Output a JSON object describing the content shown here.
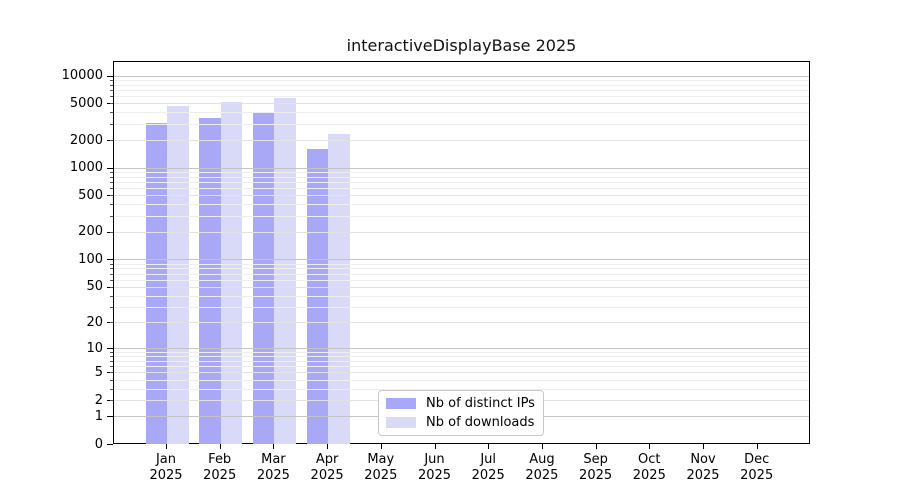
{
  "chart_data": {
    "type": "bar",
    "title": "interactiveDisplayBase 2025",
    "y_scale": "log1p",
    "ylim": [
      0,
      14500
    ],
    "grid": true,
    "legend_position": "lower-center-inside",
    "x_months": [
      "Jan",
      "Feb",
      "Mar",
      "Apr",
      "May",
      "Jun",
      "Jul",
      "Aug",
      "Sep",
      "Oct",
      "Nov",
      "Dec"
    ],
    "x_year": "2025",
    "y_tick_labels": [
      "0",
      "1",
      "2",
      "5",
      "10",
      "20",
      "50",
      "100",
      "200",
      "500",
      "1000",
      "2000",
      "5000",
      "10000"
    ],
    "series": [
      {
        "name": "Nb of distinct IPs",
        "color": "#a8a8f6",
        "values": [
          3100,
          3500,
          3900,
          1600,
          null,
          null,
          null,
          null,
          null,
          null,
          null,
          null
        ]
      },
      {
        "name": "Nb of downloads",
        "color": "#d9d9f8",
        "values": [
          4700,
          5200,
          5700,
          2300,
          null,
          null,
          null,
          null,
          null,
          null,
          null,
          null
        ]
      }
    ],
    "colors": {
      "grid_major": "#c4c4c4",
      "grid_mid": "#e2e2e2",
      "grid_minor": "#eeeeee",
      "spine": "#000000"
    }
  }
}
